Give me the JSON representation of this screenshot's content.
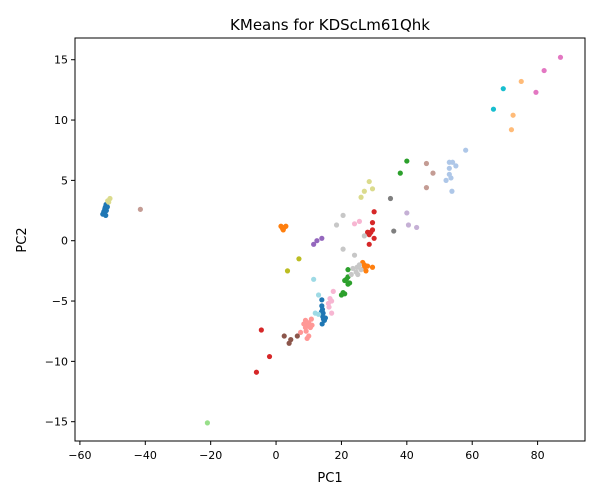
{
  "chart_data": {
    "type": "scatter",
    "title": "KMeans for KDScLm61Qhk",
    "xlabel": "PC1",
    "ylabel": "PC2",
    "xlim": [
      -61.5,
      94.5
    ],
    "ylim": [
      -16.6,
      16.8
    ],
    "xticks": [
      -60,
      -40,
      -20,
      0,
      20,
      40,
      60,
      80
    ],
    "yticks": [
      -15,
      -10,
      -5,
      0,
      5,
      10,
      15
    ],
    "grid": false,
    "legend": "none",
    "clusters": [
      {
        "color": "#1f77b4",
        "points": [
          [
            -53.0,
            2.2
          ],
          [
            -52.7,
            2.4
          ],
          [
            -52.4,
            2.6
          ],
          [
            -52.2,
            2.8
          ],
          [
            -52.0,
            3.0
          ],
          [
            -51.8,
            2.9
          ],
          [
            -52.5,
            2.3
          ],
          [
            -51.9,
            2.5
          ],
          [
            -52.3,
            2.7
          ],
          [
            -51.6,
            2.8
          ],
          [
            -52.1,
            2.1
          ],
          [
            14.0,
            -4.9
          ],
          [
            14.0,
            -5.4
          ],
          [
            14.2,
            -5.7
          ],
          [
            14.4,
            -6.0
          ],
          [
            14.3,
            -6.3
          ],
          [
            14.5,
            -6.5
          ],
          [
            14.8,
            -6.6
          ],
          [
            15.1,
            -6.4
          ],
          [
            14.1,
            -6.9
          ],
          [
            13.9,
            -5.9
          ]
        ]
      },
      {
        "color": "#aec7e8",
        "points": [
          [
            52.0,
            5.0
          ],
          [
            53.0,
            5.5
          ],
          [
            53.0,
            6.0
          ],
          [
            53.0,
            6.5
          ],
          [
            54.0,
            6.5
          ],
          [
            53.5,
            5.2
          ],
          [
            53.8,
            4.1
          ],
          [
            55.0,
            6.2
          ],
          [
            58.0,
            7.5
          ]
        ]
      },
      {
        "color": "#ff7f0e",
        "points": [
          [
            1.5,
            1.2
          ],
          [
            2.0,
            1.0
          ],
          [
            2.5,
            1.1
          ],
          [
            3.0,
            1.2
          ],
          [
            2.2,
            0.9
          ],
          [
            26.5,
            -1.8
          ],
          [
            27.0,
            -2.0
          ],
          [
            27.5,
            -2.5
          ],
          [
            26.8,
            -2.3
          ],
          [
            28.0,
            -2.1
          ],
          [
            29.5,
            -2.2
          ]
        ]
      },
      {
        "color": "#ffbb78",
        "points": [
          [
            75.0,
            13.2
          ],
          [
            72.5,
            10.4
          ],
          [
            72.0,
            9.2
          ]
        ]
      },
      {
        "color": "#2ca02c",
        "points": [
          [
            22.0,
            -2.4
          ],
          [
            22.0,
            -3.0
          ],
          [
            21.5,
            -3.2
          ],
          [
            22.5,
            -3.5
          ],
          [
            22.0,
            -3.6
          ],
          [
            21.0,
            -3.3
          ],
          [
            20.5,
            -4.3
          ],
          [
            21.0,
            -4.4
          ],
          [
            20.0,
            -4.5
          ],
          [
            38.0,
            5.6
          ],
          [
            40.0,
            6.6
          ]
        ]
      },
      {
        "color": "#98df8a",
        "points": [
          [
            -21.0,
            -15.1
          ]
        ]
      },
      {
        "color": "#d62728",
        "points": [
          [
            -6.0,
            -10.9
          ],
          [
            -4.5,
            -7.4
          ],
          [
            -2.0,
            -9.6
          ],
          [
            30.0,
            2.4
          ],
          [
            29.5,
            1.5
          ],
          [
            29.5,
            0.9
          ],
          [
            28.0,
            0.7
          ],
          [
            28.5,
            0.5
          ],
          [
            29.0,
            0.7
          ],
          [
            30.0,
            0.2
          ],
          [
            28.5,
            -0.3
          ]
        ]
      },
      {
        "color": "#ff9896",
        "points": [
          [
            9.0,
            -6.6
          ],
          [
            9.5,
            -7.0
          ],
          [
            10.0,
            -6.8
          ],
          [
            10.5,
            -7.2
          ],
          [
            11.0,
            -7.0
          ],
          [
            9.2,
            -7.5
          ],
          [
            10.0,
            -7.9
          ],
          [
            9.5,
            -8.1
          ],
          [
            9.0,
            -7.2
          ],
          [
            7.5,
            -7.6
          ],
          [
            8.5,
            -6.9
          ],
          [
            10.8,
            -6.5
          ]
        ]
      },
      {
        "color": "#9467bd",
        "points": [
          [
            11.5,
            -0.3
          ],
          [
            12.5,
            0.0
          ],
          [
            14.0,
            0.2
          ]
        ]
      },
      {
        "color": "#c5b0d5",
        "points": [
          [
            40.0,
            2.3
          ],
          [
            40.5,
            1.3
          ],
          [
            43.0,
            1.1
          ]
        ]
      },
      {
        "color": "#8c564b",
        "points": [
          [
            2.5,
            -7.9
          ],
          [
            4.5,
            -8.2
          ],
          [
            4.0,
            -8.5
          ],
          [
            6.5,
            -7.9
          ]
        ]
      },
      {
        "color": "#c49c94",
        "points": [
          [
            -41.5,
            2.6
          ],
          [
            46.0,
            6.4
          ],
          [
            48.0,
            5.6
          ],
          [
            46.0,
            4.4
          ]
        ]
      },
      {
        "color": "#e377c2",
        "points": [
          [
            82.0,
            14.1
          ],
          [
            79.5,
            12.3
          ],
          [
            87.0,
            15.2
          ]
        ]
      },
      {
        "color": "#f7b6d2",
        "points": [
          [
            16.0,
            -5.2
          ],
          [
            16.5,
            -4.8
          ],
          [
            17.0,
            -5.0
          ],
          [
            17.5,
            -4.2
          ],
          [
            16.2,
            -5.5
          ],
          [
            17.0,
            -6.0
          ],
          [
            24.0,
            1.4
          ],
          [
            25.5,
            1.6
          ]
        ]
      },
      {
        "color": "#7f7f7f",
        "points": [
          [
            35.0,
            3.5
          ],
          [
            36.0,
            0.8
          ]
        ]
      },
      {
        "color": "#c7c7c7",
        "points": [
          [
            18.5,
            1.3
          ],
          [
            20.5,
            2.1
          ],
          [
            20.5,
            -0.7
          ],
          [
            24.0,
            -1.2
          ],
          [
            23.5,
            -2.3
          ],
          [
            24.5,
            -2.6
          ],
          [
            25.0,
            -2.8
          ],
          [
            26.0,
            -2.4
          ],
          [
            24.8,
            -2.2
          ],
          [
            23.0,
            -2.8
          ],
          [
            25.5,
            -2.0
          ],
          [
            27.0,
            0.4
          ]
        ]
      },
      {
        "color": "#bcbd22",
        "points": [
          [
            3.5,
            -2.5
          ],
          [
            7.0,
            -1.5
          ]
        ]
      },
      {
        "color": "#dbdb8d",
        "points": [
          [
            -51.5,
            3.3
          ],
          [
            -50.8,
            3.5
          ],
          [
            -51.2,
            3.2
          ],
          [
            26.0,
            3.6
          ],
          [
            27.0,
            4.1
          ],
          [
            28.5,
            4.9
          ],
          [
            29.5,
            4.3
          ]
        ]
      },
      {
        "color": "#17becf",
        "points": [
          [
            69.5,
            12.6
          ],
          [
            66.5,
            10.9
          ]
        ]
      },
      {
        "color": "#9edae5",
        "points": [
          [
            11.5,
            -3.2
          ],
          [
            13.0,
            -4.5
          ],
          [
            12.0,
            -6.0
          ],
          [
            13.0,
            -6.1
          ]
        ]
      }
    ]
  }
}
